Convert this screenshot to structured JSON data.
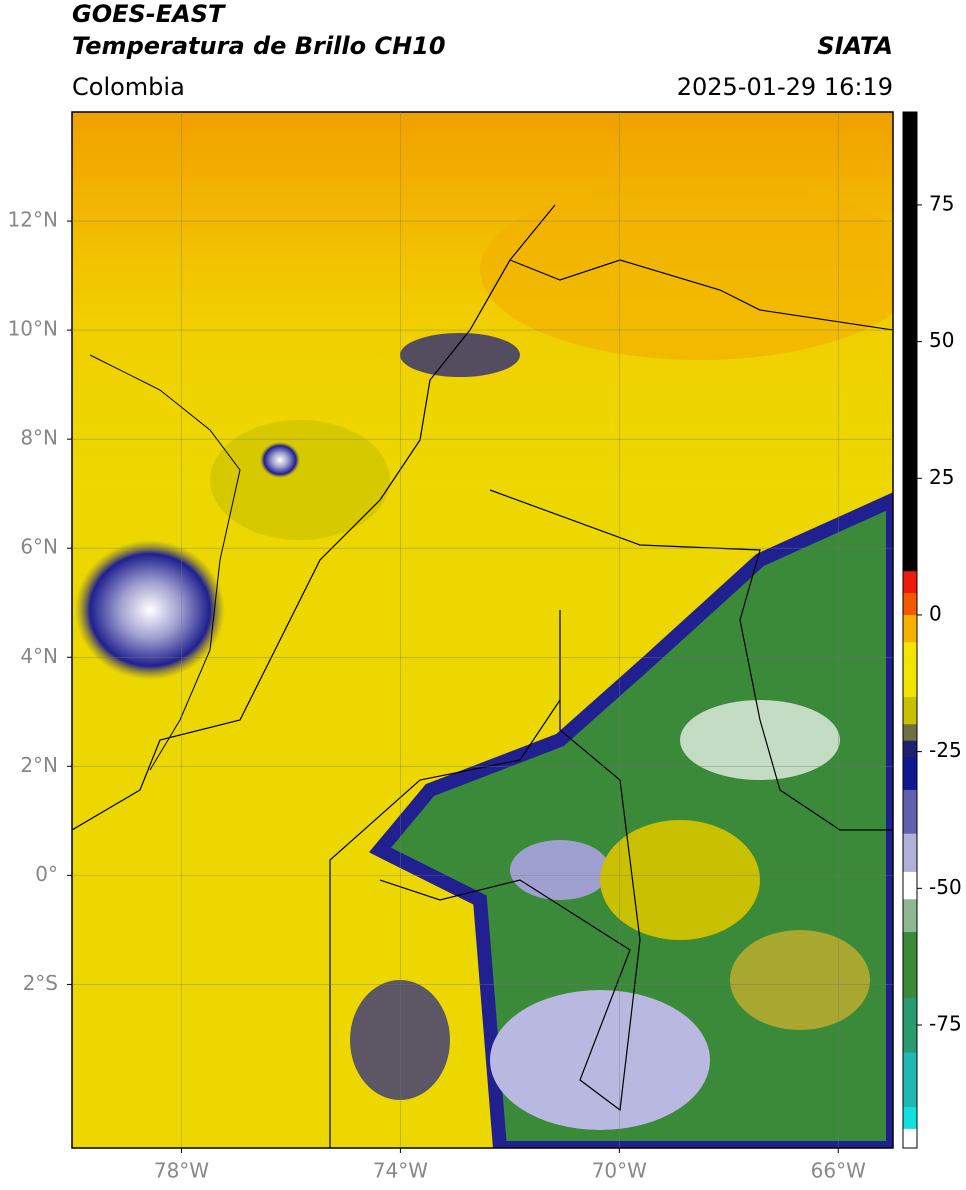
{
  "header": {
    "title": "GOES-EAST",
    "subtitle": "Temperatura de Brillo CH10",
    "source": "SIATA",
    "region": "Colombia",
    "datetime": "2025-01-29 16:19"
  },
  "map": {
    "xlim": [
      -80,
      -65
    ],
    "ylim": [
      -5,
      14
    ],
    "grid": true,
    "xticks": [
      {
        "value": -78,
        "label": "78°W"
      },
      {
        "value": -74,
        "label": "74°W"
      },
      {
        "value": -70,
        "label": "70°W"
      },
      {
        "value": -66,
        "label": "66°W"
      }
    ],
    "yticks": [
      {
        "value": 12,
        "label": "12°N"
      },
      {
        "value": 10,
        "label": "10°N"
      },
      {
        "value": 8,
        "label": "8°N"
      },
      {
        "value": 6,
        "label": "6°N"
      },
      {
        "value": 4,
        "label": "4°N"
      },
      {
        "value": 2,
        "label": "2°N"
      },
      {
        "value": 0,
        "label": "0°"
      },
      {
        "value": -2,
        "label": "2°S"
      }
    ]
  },
  "colorbar": {
    "clim": [
      -97.5,
      92
    ],
    "ticks": [
      75,
      50,
      25,
      0,
      -25,
      -50,
      -75
    ],
    "bands": [
      {
        "from": 92,
        "to": 8,
        "color": "#000000"
      },
      {
        "from": 8,
        "to": 4,
        "color": "#ee1a0a"
      },
      {
        "from": 4,
        "to": 0,
        "color": "#f35a00"
      },
      {
        "from": 0,
        "to": -5,
        "color": "#f7b000"
      },
      {
        "from": -5,
        "to": -15,
        "color": "#f2e600"
      },
      {
        "from": -15,
        "to": -20,
        "color": "#c8c000"
      },
      {
        "from": -20,
        "to": -23,
        "color": "#707040"
      },
      {
        "from": -23,
        "to": -26,
        "color": "#202070"
      },
      {
        "from": -26,
        "to": -32,
        "color": "#101890"
      },
      {
        "from": -32,
        "to": -40,
        "color": "#6060b0"
      },
      {
        "from": -40,
        "to": -47,
        "color": "#b0b0d8"
      },
      {
        "from": -47,
        "to": -52,
        "color": "#ffffff"
      },
      {
        "from": -52,
        "to": -58,
        "color": "#90b890"
      },
      {
        "from": -58,
        "to": -70,
        "color": "#3a8a3a"
      },
      {
        "from": -70,
        "to": -80,
        "color": "#2a9a70"
      },
      {
        "from": -80,
        "to": -90,
        "color": "#20b8b0"
      },
      {
        "from": -90,
        "to": -94,
        "color": "#10e0e0"
      },
      {
        "from": -94,
        "to": -97.5,
        "color": "#ffffff"
      }
    ]
  }
}
